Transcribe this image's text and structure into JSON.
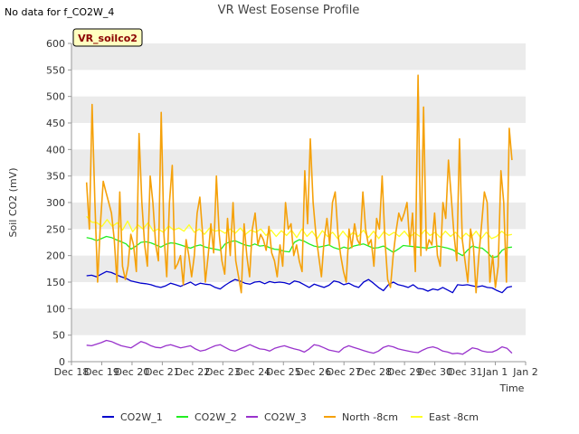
{
  "header": {
    "nodata": "No data for f_CO2W_4",
    "title": "VR West Eosense Profile",
    "badge": "VR_soilco2"
  },
  "colors": {
    "CO2W_1": "#0000cc",
    "CO2W_2": "#22ee22",
    "CO2W_3": "#9933cc",
    "North -8cm": "#f5a10a",
    "East -8cm": "#ffff22",
    "band": "#ebebeb",
    "badge_fill": "#ffffc0",
    "badge_text": "#8b0000"
  },
  "chart_data": {
    "type": "line",
    "title": "VR West Eosense Profile",
    "xlabel": "Time",
    "ylabel": "Soil CO2 (mV)",
    "xlim": [
      "Dec 18",
      "Jan 2"
    ],
    "ylim": [
      0,
      600
    ],
    "grid": "horizontal bands",
    "legend_position": "bottom",
    "x_ticks": [
      "Dec 18",
      "Dec 19",
      "Dec 20",
      "Dec 21",
      "Dec 22",
      "Dec 23",
      "Dec 24",
      "Dec 25",
      "Dec 26",
      "Dec 27",
      "Dec 28",
      "Dec 29",
      "Dec 30",
      "Dec 31",
      "Jan 1",
      "Jan 2"
    ],
    "y_ticks": [
      "0",
      "50",
      "100",
      "150",
      "200",
      "250",
      "300",
      "350",
      "400",
      "450",
      "500",
      "550",
      "600"
    ],
    "x_step_days": 0.25,
    "x_start": "Dec 18 12:00",
    "series": [
      {
        "name": "CO2W_1",
        "values": [
          162,
          163,
          160,
          165,
          170,
          168,
          164,
          160,
          157,
          152,
          150,
          148,
          147,
          145,
          142,
          140,
          143,
          148,
          145,
          142,
          146,
          150,
          144,
          148,
          146,
          145,
          140,
          137,
          144,
          150,
          155,
          152,
          148,
          146,
          150,
          151,
          147,
          151,
          149,
          150,
          149,
          146,
          152,
          150,
          145,
          140,
          146,
          143,
          140,
          144,
          152,
          150,
          145,
          148,
          143,
          140,
          150,
          155,
          148,
          140,
          134,
          145,
          150,
          145,
          143,
          140,
          145,
          138,
          137,
          133,
          137,
          135,
          140,
          135,
          130,
          145,
          144,
          145,
          143,
          141,
          143,
          140,
          139,
          134,
          130,
          140,
          142
        ]
      },
      {
        "name": "CO2W_2",
        "values": [
          234,
          232,
          228,
          232,
          236,
          234,
          230,
          226,
          222,
          212,
          218,
          225,
          226,
          224,
          220,
          216,
          221,
          224,
          223,
          220,
          217,
          214,
          218,
          220,
          216,
          214,
          212,
          210,
          222,
          226,
          228,
          224,
          220,
          218,
          222,
          218,
          219,
          215,
          212,
          211,
          208,
          207,
          225,
          230,
          227,
          222,
          218,
          216,
          218,
          220,
          215,
          212,
          216,
          213,
          218,
          220,
          222,
          218,
          214,
          215,
          218,
          212,
          206,
          212,
          219,
          218,
          217,
          216,
          215,
          214,
          216,
          218,
          216,
          214,
          211,
          205,
          200,
          210,
          218,
          215,
          214,
          206,
          196,
          198,
          210,
          215,
          216
        ]
      },
      {
        "name": "CO2W_3",
        "values": [
          31,
          30,
          33,
          36,
          40,
          38,
          34,
          30,
          28,
          26,
          32,
          38,
          35,
          30,
          27,
          26,
          30,
          32,
          29,
          26,
          28,
          30,
          24,
          20,
          22,
          26,
          30,
          32,
          27,
          22,
          20,
          24,
          28,
          32,
          28,
          24,
          23,
          20,
          25,
          28,
          30,
          27,
          24,
          22,
          18,
          24,
          32,
          30,
          26,
          22,
          20,
          18,
          26,
          30,
          27,
          24,
          21,
          18,
          16,
          20,
          27,
          30,
          28,
          24,
          22,
          20,
          18,
          17,
          22,
          26,
          28,
          25,
          20,
          18,
          15,
          16,
          14,
          20,
          26,
          24,
          20,
          18,
          18,
          22,
          28,
          25,
          16
        ]
      },
      {
        "name": "North -8cm",
        "values": [
          338,
          250,
          485,
          300,
          150,
          260,
          340,
          320,
          300,
          280,
          230,
          150,
          320,
          180,
          155,
          180,
          240,
          220,
          170,
          430,
          300,
          220,
          180,
          350,
          300,
          220,
          190,
          470,
          240,
          160,
          300,
          370,
          175,
          185,
          200,
          145,
          230,
          200,
          160,
          200,
          280,
          310,
          240,
          150,
          200,
          260,
          205,
          350,
          240,
          190,
          165,
          270,
          200,
          300,
          190,
          160,
          130,
          260,
          200,
          160,
          250,
          280,
          220,
          240,
          230,
          210,
          255,
          205,
          190,
          160,
          220,
          180,
          300,
          250,
          260,
          200,
          220,
          190,
          170,
          360,
          260,
          420,
          300,
          240,
          200,
          160,
          230,
          270,
          220,
          300,
          320,
          240,
          200,
          170,
          150,
          250,
          215,
          260,
          230,
          220,
          320,
          250,
          220,
          230,
          180,
          270,
          250,
          350,
          230,
          155,
          140,
          200,
          245,
          280,
          265,
          280,
          300,
          220,
          280,
          170,
          540,
          200,
          480,
          210,
          230,
          220,
          280,
          200,
          180,
          300,
          270,
          380,
          310,
          240,
          190,
          420,
          230,
          190,
          150,
          250,
          220,
          130,
          200,
          260,
          320,
          300,
          150,
          200,
          140,
          180,
          360,
          300,
          150,
          440,
          380
        ]
      },
      {
        "name": "East -8cm",
        "values": [
          274,
          263,
          262,
          255,
          268,
          255,
          262,
          248,
          265,
          245,
          258,
          250,
          262,
          246,
          250,
          244,
          256,
          248,
          252,
          246,
          258,
          244,
          250,
          240,
          252,
          246,
          248,
          242,
          250,
          242,
          252,
          240,
          248,
          244,
          250,
          238,
          248,
          236,
          247,
          238,
          248,
          234,
          250,
          236,
          246,
          232,
          247,
          236,
          244,
          232,
          246,
          234,
          244,
          236,
          248,
          234,
          246,
          232,
          245,
          238,
          244,
          236,
          246,
          234,
          243,
          236,
          248,
          238,
          244,
          234,
          246,
          236,
          244,
          232,
          242,
          234,
          246,
          232,
          244,
          232,
          236,
          246,
          238,
          240
        ]
      }
    ]
  },
  "legend": [
    {
      "name": "CO2W_1"
    },
    {
      "name": "CO2W_2"
    },
    {
      "name": "CO2W_3"
    },
    {
      "name": "North -8cm"
    },
    {
      "name": "East -8cm"
    }
  ]
}
